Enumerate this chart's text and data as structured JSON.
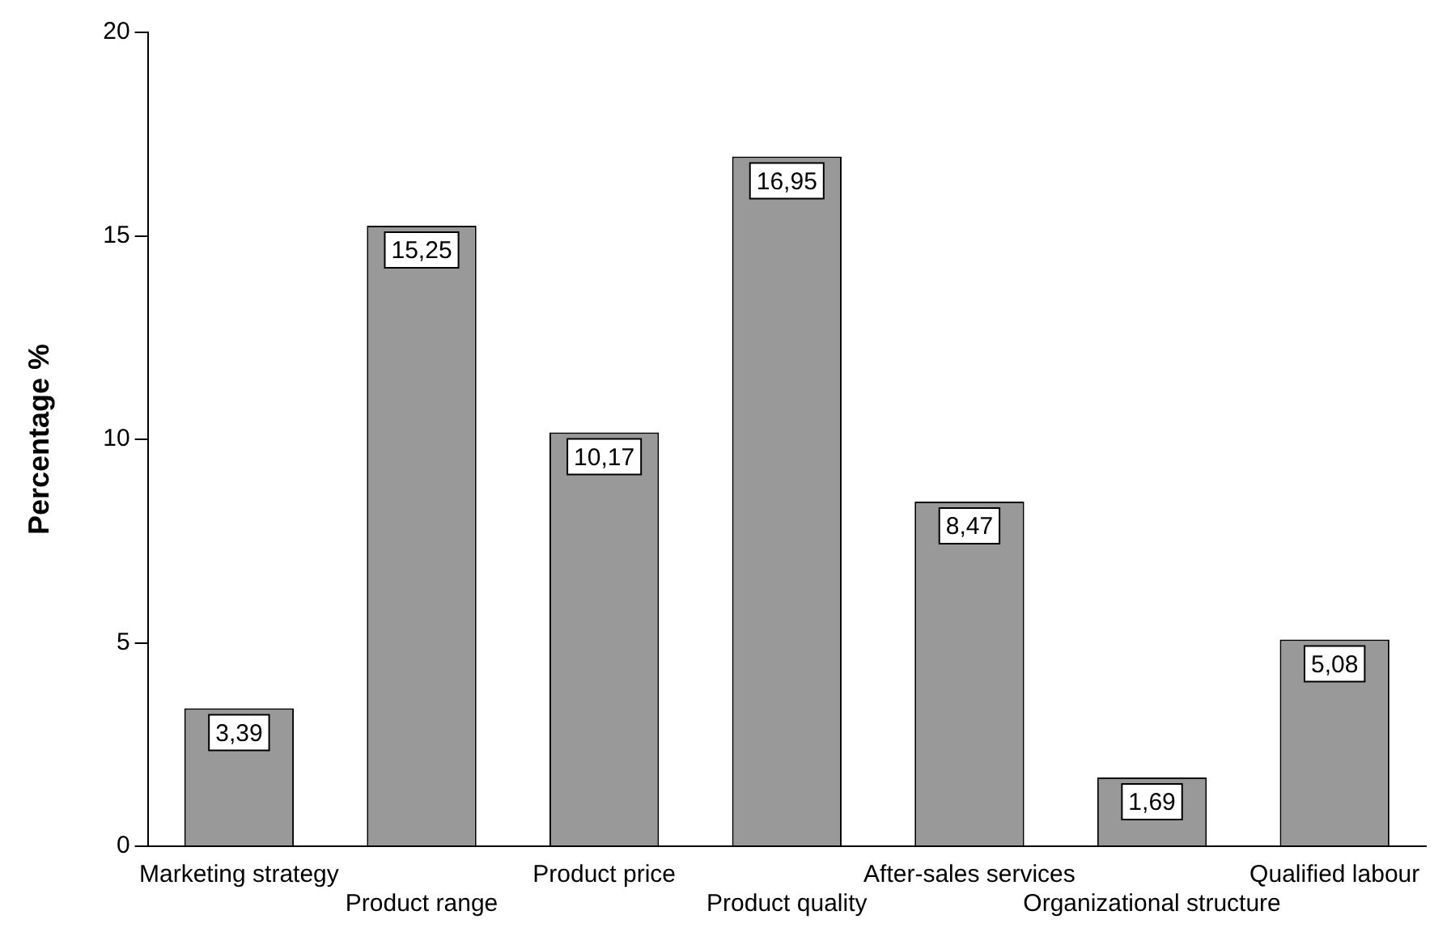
{
  "chart_data": {
    "type": "bar",
    "ylabel": "Percentage %",
    "categories": [
      "Marketing strategy",
      "Product range",
      "Product price",
      "Product quality",
      "After-sales services",
      "Organizational structure",
      "Qualified labour"
    ],
    "values": [
      3.39,
      15.25,
      10.17,
      16.95,
      8.47,
      1.69,
      5.08
    ],
    "value_labels": [
      "3,39",
      "15,25",
      "10,17",
      "16,95",
      "8,47",
      "1,69",
      "5,08"
    ],
    "color": "#999999",
    "ylim": [
      0,
      20
    ],
    "yticks": [
      0,
      5,
      10,
      15,
      20
    ],
    "grid": false,
    "legend": false
  }
}
